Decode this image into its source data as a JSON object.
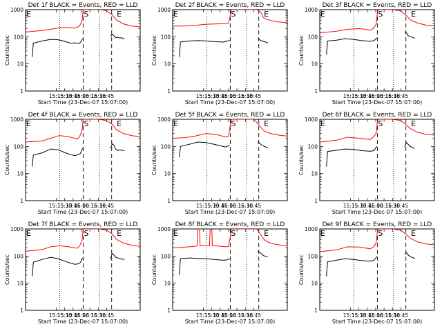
{
  "chart_data": {
    "type": "line",
    "yscale": "log",
    "ylim": [
      1,
      1000
    ],
    "xlim": [
      800,
      1005
    ],
    "xticks": [
      {
        "label": "15:15",
        "value": 855
      },
      {
        "label": "15:30",
        "value": 870
      },
      {
        "label": "15:45",
        "value": 885
      },
      {
        "label": "16:00",
        "value": 900
      },
      {
        "label": "16:15",
        "value": 915
      },
      {
        "label": "16:30",
        "value": 930
      },
      {
        "label": "16:45",
        "value": 945
      }
    ],
    "ytick_labels": [
      "1",
      "10",
      "100",
      "1000"
    ],
    "ylabel": "Counts/sec",
    "xlabel": "Start Time (23-Dec-07 15:07:00)",
    "legend": {
      "events_color": "#000000",
      "lld_color": "#ff0000"
    },
    "markers": [
      {
        "label": "E",
        "x": 800
      },
      {
        "label": "S",
        "x": 903
      },
      {
        "label": "E",
        "x": 962
      }
    ],
    "dotted_lines": [
      861,
      932
    ],
    "dashed_lines": [
      903,
      954
    ],
    "panels": [
      {
        "title": "Det 1f BLACK = Events, RED = LLD",
        "lld": {
          "x": [
            800,
            830,
            845,
            860,
            870,
            878,
            888,
            893,
            897,
            901,
            903,
            905,
            906,
            912,
            918,
            925,
            935,
            945,
            955,
            962,
            975,
            990,
            1005
          ],
          "y": [
            150,
            170,
            190,
            215,
            220,
            215,
            210,
            225,
            260,
            380,
            1000,
            1000,
            1000,
            1000,
            1000,
            1000,
            1000,
            900,
            650,
            420,
            300,
            250,
            230
          ]
        },
        "events": [
          {
            "x": [
              812,
              814,
              830,
              845,
              858,
              870,
              880,
              888,
              895,
              898,
              902
            ],
            "y": [
              18,
              58,
              70,
              80,
              78,
              68,
              58,
              60,
              56,
              62,
              85
            ]
          },
          {
            "x": [
              952,
              955,
              958,
              961,
              965,
              968,
              972,
              977
            ],
            "y": [
              100,
              125,
              110,
              92,
              96,
              90,
              92,
              82
            ]
          }
        ]
      },
      {
        "title": "Det 2f BLACK = Events, RED = LLD",
        "lld": {
          "x": [
            800,
            820,
            840,
            860,
            880,
            895,
            900,
            903,
            905,
            912,
            935,
            950,
            958,
            962,
            966,
            975,
            990,
            1005
          ],
          "y": [
            250,
            250,
            265,
            290,
            300,
            305,
            320,
            600,
            1000,
            1000,
            1000,
            1000,
            800,
            520,
            460,
            400,
            350,
            330
          ]
        },
        "events": [
          {
            "x": [
              812,
              814,
              830,
              845,
              860,
              875,
              890,
              897,
              902
            ],
            "y": [
              18,
              65,
              70,
              72,
              70,
              66,
              64,
              68,
              75
            ]
          },
          {
            "x": [
              952,
              955,
              958,
              962,
              966,
              970
            ],
            "y": [
              85,
              80,
              72,
              68,
              64,
              60
            ]
          }
        ]
      },
      {
        "title": "Det 3f BLACK = Events, RED = LLD",
        "lld": {
          "x": [
            800,
            830,
            850,
            870,
            880,
            890,
            897,
            901,
            903,
            905,
            912,
            930,
            945,
            955,
            962,
            975,
            990,
            1005
          ],
          "y": [
            140,
            160,
            190,
            200,
            190,
            175,
            210,
            300,
            800,
            1000,
            1000,
            1000,
            900,
            600,
            420,
            320,
            270,
            250
          ]
        },
        "events": [
          {
            "x": [
              812,
              814,
              830,
              845,
              860,
              875,
              890,
              897,
              902
            ],
            "y": [
              22,
              70,
              75,
              85,
              80,
              72,
              68,
              72,
              90
            ]
          },
          {
            "x": [
              952,
              955,
              958,
              962,
              966,
              970
            ],
            "y": [
              150,
              140,
              110,
              100,
              95,
              88
            ]
          }
        ]
      },
      {
        "title": "Det 4f BLACK = Events, RED = LLD",
        "lld": {
          "x": [
            800,
            830,
            845,
            860,
            870,
            880,
            888,
            893,
            897,
            901,
            903,
            905,
            906,
            912,
            930,
            945,
            955,
            962,
            975,
            990,
            1005
          ],
          "y": [
            145,
            160,
            200,
            250,
            240,
            220,
            200,
            190,
            240,
            380,
            1000,
            1000,
            1000,
            1000,
            1000,
            900,
            650,
            420,
            300,
            250,
            230
          ]
        },
        "events": [
          {
            "x": [
              812,
              814,
              830,
              845,
              858,
              870,
              880,
              888,
              895,
              898,
              902
            ],
            "y": [
              18,
              48,
              58,
              80,
              75,
              60,
              50,
              46,
              50,
              55,
              85
            ]
          },
          {
            "x": [
              952,
              955,
              958,
              961,
              965,
              968,
              972,
              977
            ],
            "y": [
              85,
              125,
              110,
              80,
              70,
              75,
              72,
              70
            ]
          }
        ]
      },
      {
        "title": "Det 5f BLACK = Events, RED = LLD",
        "lld": {
          "x": [
            800,
            820,
            840,
            860,
            880,
            895,
            900,
            903,
            905,
            912,
            930,
            945,
            952,
            958,
            962,
            966,
            975,
            990,
            1005
          ],
          "y": [
            200,
            210,
            240,
            300,
            270,
            220,
            240,
            600,
            1000,
            1000,
            1000,
            1000,
            700,
            500,
            400,
            350,
            300,
            260,
            240
          ]
        },
        "events": [
          {
            "x": [
              812,
              814,
              830,
              845,
              858,
              870,
              882,
              895,
              902
            ],
            "y": [
              40,
              100,
              120,
              145,
              140,
              125,
              110,
              95,
              110
            ]
          },
          {
            "x": [
              952,
              955,
              958,
              962,
              966,
              970
            ],
            "y": [
              150,
              135,
              118,
              105,
              96,
              90
            ]
          }
        ]
      },
      {
        "title": "Det 6f BLACK = Events, RED = LLD",
        "lld": {
          "x": [
            800,
            830,
            850,
            870,
            880,
            890,
            897,
            901,
            903,
            905,
            912,
            930,
            945,
            955,
            962,
            975,
            990,
            1005
          ],
          "y": [
            145,
            170,
            220,
            200,
            190,
            180,
            230,
            320,
            800,
            1000,
            1000,
            1000,
            900,
            620,
            450,
            330,
            280,
            260
          ]
        },
        "events": [
          {
            "x": [
              812,
              814,
              830,
              845,
              860,
              875,
              890,
              897,
              902
            ],
            "y": [
              18,
              65,
              72,
              80,
              78,
              70,
              66,
              70,
              100
            ]
          },
          {
            "x": [
              952,
              955,
              958,
              962,
              966,
              970
            ],
            "y": [
              95,
              140,
              120,
              100,
              90,
              85
            ]
          }
        ]
      },
      {
        "title": "Det 7f BLACK = Events, RED = LLD",
        "lld": {
          "x": [
            800,
            830,
            845,
            860,
            870,
            880,
            888,
            893,
            897,
            901,
            903,
            905,
            906,
            912,
            930,
            945,
            955,
            962,
            975,
            990,
            1005
          ],
          "y": [
            150,
            175,
            220,
            240,
            230,
            215,
            200,
            195,
            240,
            380,
            1000,
            1000,
            1000,
            1000,
            1000,
            900,
            650,
            420,
            300,
            250,
            230
          ]
        },
        "events": [
          {
            "x": [
              812,
              814,
              830,
              845,
              858,
              870,
              880,
              888,
              895,
              898,
              902
            ],
            "y": [
              18,
              60,
              75,
              90,
              80,
              65,
              55,
              50,
              52,
              58,
              85
            ]
          },
          {
            "x": [
              952,
              955,
              958,
              961,
              965,
              968,
              972,
              977
            ],
            "y": [
              80,
              125,
              110,
              90,
              85,
              80,
              78,
              75
            ]
          }
        ]
      },
      {
        "title": "Det 8f BLACK = Events, RED = LLD",
        "lld": {
          "x": [
            800,
            830,
            840,
            844,
            845,
            848,
            849,
            855,
            860,
            866,
            867,
            870,
            871,
            880,
            895,
            900,
            903,
            905,
            912,
            935,
            950,
            956,
            960,
            964,
            970,
            980,
            995,
            1005
          ],
          "y": [
            200,
            220,
            230,
            240,
            1000,
            1000,
            240,
            240,
            240,
            240,
            1000,
            1000,
            240,
            235,
            220,
            230,
            500,
            1000,
            1000,
            1000,
            1000,
            700,
            500,
            400,
            330,
            280,
            250,
            235
          ]
        },
        "events": [
          {
            "x": [
              812,
              814,
              830,
              845,
              860,
              875,
              890,
              897,
              902
            ],
            "y": [
              20,
              80,
              85,
              82,
              80,
              75,
              70,
              72,
              80
            ]
          },
          {
            "x": [
              952,
              955,
              958,
              962,
              966,
              970
            ],
            "y": [
              150,
              140,
              125,
              105,
              98,
              95
            ]
          }
        ]
      },
      {
        "title": "Det 9f BLACK = Events, RED = LLD",
        "lld": {
          "x": [
            800,
            830,
            850,
            870,
            880,
            890,
            897,
            901,
            903,
            905,
            912,
            930,
            945,
            955,
            962,
            975,
            990,
            1005
          ],
          "y": [
            145,
            170,
            220,
            215,
            200,
            185,
            220,
            320,
            800,
            1000,
            1000,
            1000,
            900,
            620,
            450,
            330,
            280,
            260
          ]
        },
        "events": [
          {
            "x": [
              812,
              814,
              830,
              845,
              860,
              875,
              890,
              897,
              902
            ],
            "y": [
              18,
              62,
              70,
              80,
              75,
              68,
              65,
              70,
              95
            ]
          },
          {
            "x": [
              952,
              955,
              958,
              962,
              966,
              970
            ],
            "y": [
              115,
              135,
              110,
              95,
              88,
              82
            ]
          }
        ]
      }
    ]
  }
}
